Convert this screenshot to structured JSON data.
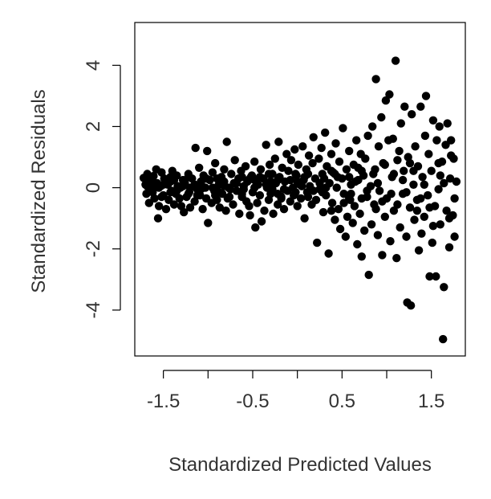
{
  "chart_data": {
    "type": "scatter",
    "title": "",
    "xlabel": "Standardized Predicted Values",
    "ylabel": "Standardized Residuals",
    "xlim": [
      -1.82,
      1.88
    ],
    "ylim": [
      -5.5,
      5.4
    ],
    "xticks": [
      -1.5,
      -1.0,
      -0.5,
      0.0,
      0.5,
      1.0,
      1.5
    ],
    "xtick_labels": [
      "-1.5",
      "",
      "-0.5",
      "",
      "0.5",
      "",
      "1.5"
    ],
    "yticks": [
      -4,
      -2,
      0,
      2,
      4
    ],
    "ytick_labels": [
      "-4",
      "-2",
      "0",
      "2",
      "4"
    ],
    "grid": false,
    "point_color": "#000000",
    "points": [
      [
        -1.72,
        0.32
      ],
      [
        -1.7,
        0.1
      ],
      [
        -1.69,
        -0.2
      ],
      [
        -1.68,
        0.45
      ],
      [
        -1.66,
        -0.5
      ],
      [
        -1.65,
        0.2
      ],
      [
        -1.63,
        -0.05
      ],
      [
        -1.61,
        0.38
      ],
      [
        -1.6,
        -0.35
      ],
      [
        -1.58,
        0.6
      ],
      [
        -1.57,
        0.15
      ],
      [
        -1.56,
        -1.0
      ],
      [
        -1.55,
        -0.6
      ],
      [
        -1.53,
        0.05
      ],
      [
        -1.52,
        0.5
      ],
      [
        -1.5,
        -0.25
      ],
      [
        -1.49,
        0.3
      ],
      [
        -1.47,
        -0.7
      ],
      [
        -1.45,
        0.1
      ],
      [
        -1.44,
        -0.4
      ],
      [
        -1.42,
        0.2
      ],
      [
        -1.41,
        -0.1
      ],
      [
        -1.4,
        0.55
      ],
      [
        -1.38,
        -0.55
      ],
      [
        -1.36,
        -0.2
      ],
      [
        -1.35,
        0.4
      ],
      [
        -1.34,
        0.05
      ],
      [
        -1.32,
        -0.35
      ],
      [
        -1.31,
        0.0
      ],
      [
        -1.3,
        -0.6
      ],
      [
        -1.28,
        0.25
      ],
      [
        -1.27,
        -0.8
      ],
      [
        -1.26,
        0.15
      ],
      [
        -1.24,
        -0.3
      ],
      [
        -1.22,
        0.45
      ],
      [
        -1.21,
        -0.15
      ],
      [
        -1.2,
        -0.65
      ],
      [
        -1.18,
        0.3
      ],
      [
        -1.16,
        0.05
      ],
      [
        -1.15,
        -0.45
      ],
      [
        -1.14,
        1.3
      ],
      [
        -1.12,
        -0.05
      ],
      [
        -1.1,
        0.65
      ],
      [
        -1.09,
        -0.25
      ],
      [
        -1.08,
        0.2
      ],
      [
        -1.06,
        -0.7
      ],
      [
        -1.05,
        0.4
      ],
      [
        -1.03,
        0.0
      ],
      [
        -1.02,
        -0.35
      ],
      [
        -1.01,
        1.2
      ],
      [
        -1.0,
        -1.15
      ],
      [
        -0.98,
        0.25
      ],
      [
        -0.96,
        -0.5
      ],
      [
        -0.95,
        0.5
      ],
      [
        -0.93,
        -0.1
      ],
      [
        -0.92,
        0.8
      ],
      [
        -0.9,
        -0.4
      ],
      [
        -0.88,
        0.1
      ],
      [
        -0.87,
        -0.65
      ],
      [
        -0.85,
        0.35
      ],
      [
        -0.84,
        -0.2
      ],
      [
        -0.82,
        0.6
      ],
      [
        -0.8,
        -0.75
      ],
      [
        -0.79,
        1.5
      ],
      [
        -0.77,
        0.0
      ],
      [
        -0.76,
        -0.3
      ],
      [
        -0.74,
        0.45
      ],
      [
        -0.72,
        -0.55
      ],
      [
        -0.71,
        0.15
      ],
      [
        -0.7,
        0.9
      ],
      [
        -0.68,
        -0.1
      ],
      [
        -0.66,
        0.3
      ],
      [
        -0.65,
        -0.85
      ],
      [
        -0.63,
        0.55
      ],
      [
        -0.62,
        -0.3
      ],
      [
        -0.6,
        0.05
      ],
      [
        -0.58,
        0.7
      ],
      [
        -0.57,
        -0.45
      ],
      [
        -0.56,
        0.2
      ],
      [
        -0.54,
        -0.6
      ],
      [
        -0.53,
        -0.9
      ],
      [
        -0.51,
        0.4
      ],
      [
        -0.5,
        -0.15
      ],
      [
        -0.48,
        0.85
      ],
      [
        -0.47,
        -1.3
      ],
      [
        -0.45,
        -0.5
      ],
      [
        -0.44,
        0.1
      ],
      [
        -0.42,
        -0.25
      ],
      [
        -0.41,
        0.6
      ],
      [
        -0.4,
        -1.1
      ],
      [
        -0.38,
        0.3
      ],
      [
        -0.37,
        -0.75
      ],
      [
        -0.35,
        1.4
      ],
      [
        -0.34,
        0.0
      ],
      [
        -0.32,
        -0.4
      ],
      [
        -0.31,
        0.75
      ],
      [
        -0.3,
        -0.2
      ],
      [
        -0.28,
        0.45
      ],
      [
        -0.27,
        -0.85
      ],
      [
        -0.25,
        0.95
      ],
      [
        -0.24,
        0.15
      ],
      [
        -0.22,
        -0.55
      ],
      [
        -0.21,
        1.5
      ],
      [
        -0.2,
        0.35
      ],
      [
        -0.18,
        -0.3
      ],
      [
        -0.17,
        0.65
      ],
      [
        -0.15,
        -0.7
      ],
      [
        -0.14,
        0.2
      ],
      [
        -0.12,
        1.1
      ],
      [
        -0.11,
        -0.1
      ],
      [
        -0.1,
        0.55
      ],
      [
        -0.08,
        -0.45
      ],
      [
        -0.07,
        0.9
      ],
      [
        -0.05,
        0.0
      ],
      [
        -0.04,
        -0.25
      ],
      [
        -0.03,
        1.25
      ],
      [
        -0.01,
        0.4
      ],
      [
        0.0,
        -0.6
      ],
      [
        0.01,
        0.75
      ],
      [
        0.03,
        0.1
      ],
      [
        0.04,
        -0.35
      ],
      [
        0.06,
        1.35
      ],
      [
        0.07,
        0.25
      ],
      [
        0.08,
        -1.0
      ],
      [
        0.1,
        0.6
      ],
      [
        0.11,
        -0.15
      ],
      [
        0.13,
        1.05
      ],
      [
        0.14,
        0.05
      ],
      [
        0.16,
        -0.55
      ],
      [
        0.17,
        0.8
      ],
      [
        0.18,
        1.65
      ],
      [
        0.2,
        0.3
      ],
      [
        0.21,
        -0.4
      ],
      [
        0.22,
        -1.8
      ],
      [
        0.24,
        0.95
      ],
      [
        0.25,
        -0.05
      ],
      [
        0.27,
        1.3
      ],
      [
        0.28,
        0.45
      ],
      [
        0.29,
        -0.8
      ],
      [
        0.31,
        1.8
      ],
      [
        0.32,
        -0.25
      ],
      [
        0.33,
        0.7
      ],
      [
        0.35,
        -2.15
      ],
      [
        0.36,
        0.15
      ],
      [
        0.38,
        1.1
      ],
      [
        0.39,
        -0.5
      ],
      [
        0.4,
        0.5
      ],
      [
        0.42,
        -1.05
      ],
      [
        0.43,
        1.45
      ],
      [
        0.44,
        0.0
      ],
      [
        0.46,
        -0.7
      ],
      [
        0.47,
        0.85
      ],
      [
        0.48,
        -1.35
      ],
      [
        0.5,
        0.3
      ],
      [
        0.51,
        1.95
      ],
      [
        0.52,
        -0.2
      ],
      [
        0.54,
        -1.6
      ],
      [
        0.55,
        0.6
      ],
      [
        0.56,
        -0.95
      ],
      [
        0.58,
        1.2
      ],
      [
        0.59,
        -0.4
      ],
      [
        0.6,
        0.1
      ],
      [
        0.62,
        -1.15
      ],
      [
        0.63,
        0.75
      ],
      [
        0.64,
        -0.6
      ],
      [
        0.66,
        1.55
      ],
      [
        0.67,
        -1.85
      ],
      [
        0.68,
        0.25
      ],
      [
        0.7,
        -0.85
      ],
      [
        0.71,
        1.1
      ],
      [
        0.72,
        -2.25
      ],
      [
        0.74,
        0.4
      ],
      [
        0.75,
        -1.4
      ],
      [
        0.76,
        0.95
      ],
      [
        0.78,
        -0.3
      ],
      [
        0.79,
        1.7
      ],
      [
        0.8,
        -2.85
      ],
      [
        0.82,
        0.05
      ],
      [
        0.83,
        -1.2
      ],
      [
        0.84,
        2.0
      ],
      [
        0.86,
        -0.55
      ],
      [
        0.87,
        0.6
      ],
      [
        0.88,
        3.55
      ],
      [
        0.9,
        -1.55
      ],
      [
        0.91,
        1.35
      ],
      [
        0.92,
        -0.1
      ],
      [
        0.94,
        2.3
      ],
      [
        0.95,
        -2.2
      ],
      [
        0.96,
        0.8
      ],
      [
        0.98,
        -0.95
      ],
      [
        0.99,
        2.85
      ],
      [
        1.0,
        -0.35
      ],
      [
        1.02,
        1.55
      ],
      [
        1.03,
        3.05
      ],
      [
        1.04,
        -1.75
      ],
      [
        1.06,
        0.35
      ],
      [
        1.07,
        1.6
      ],
      [
        1.08,
        -0.75
      ],
      [
        1.1,
        4.15
      ],
      [
        1.11,
        -2.3
      ],
      [
        1.12,
        0.9
      ],
      [
        1.14,
        1.2
      ],
      [
        1.15,
        -1.3
      ],
      [
        1.16,
        2.1
      ],
      [
        1.18,
        -0.2
      ],
      [
        1.19,
        0.55
      ],
      [
        1.2,
        2.65
      ],
      [
        1.22,
        -1.6
      ],
      [
        1.23,
        -3.75
      ],
      [
        1.24,
        1.0
      ],
      [
        1.26,
        -0.65
      ],
      [
        1.27,
        -3.85
      ],
      [
        1.28,
        2.4
      ],
      [
        1.3,
        0.1
      ],
      [
        1.31,
        -1.05
      ],
      [
        1.32,
        1.35
      ],
      [
        1.34,
        -0.4
      ],
      [
        1.35,
        0.7
      ],
      [
        1.36,
        -2.05
      ],
      [
        1.38,
        2.65
      ],
      [
        1.39,
        -1.5
      ],
      [
        1.4,
        0.35
      ],
      [
        1.42,
        -0.95
      ],
      [
        1.43,
        1.7
      ],
      [
        1.44,
        3.0
      ],
      [
        1.46,
        -0.25
      ],
      [
        1.47,
        1.1
      ],
      [
        1.48,
        -2.9
      ],
      [
        1.5,
        0.55
      ],
      [
        1.51,
        -1.8
      ],
      [
        1.52,
        2.2
      ],
      [
        1.54,
        -0.6
      ],
      [
        1.55,
        -2.9
      ],
      [
        1.56,
        1.55
      ],
      [
        1.58,
        -0.05
      ],
      [
        1.59,
        2.0
      ],
      [
        1.6,
        -1.2
      ],
      [
        1.62,
        0.85
      ],
      [
        1.63,
        -4.95
      ],
      [
        1.64,
        -3.25
      ],
      [
        1.66,
        1.4
      ],
      [
        1.67,
        -0.75
      ],
      [
        1.68,
        2.1
      ],
      [
        1.7,
        -1.95
      ],
      [
        1.71,
        0.3
      ],
      [
        1.72,
        1.55
      ],
      [
        1.74,
        -0.9
      ],
      [
        1.75,
        0.95
      ],
      [
        1.76,
        -1.6
      ],
      [
        1.78,
        0.2
      ],
      [
        1.6,
        0.4
      ],
      [
        1.42,
        0.1
      ],
      [
        1.22,
        -0.15
      ],
      [
        1.05,
        -0.2
      ],
      [
        0.85,
        0.45
      ],
      [
        0.65,
        0.2
      ],
      [
        0.45,
        0.35
      ],
      [
        0.25,
        0.15
      ],
      [
        0.05,
        0.05
      ],
      [
        -0.15,
        -0.05
      ],
      [
        -0.35,
        0.1
      ],
      [
        -0.55,
        0.25
      ],
      [
        -0.75,
        -0.05
      ],
      [
        -0.95,
        0.0
      ],
      [
        -1.15,
        0.1
      ],
      [
        -1.35,
        -0.1
      ],
      [
        -1.55,
        0.0
      ],
      [
        -1.68,
        0.05
      ],
      [
        1.76,
        -0.35
      ],
      [
        1.48,
        -0.65
      ],
      [
        1.18,
        0.25
      ],
      [
        0.95,
        -0.45
      ],
      [
        0.72,
        0.55
      ],
      [
        0.52,
        -0.5
      ],
      [
        0.32,
        0.0
      ],
      [
        0.12,
        -0.3
      ],
      [
        -0.08,
        0.25
      ],
      [
        -0.28,
        -0.05
      ],
      [
        -0.48,
        0.0
      ],
      [
        -0.68,
        0.15
      ],
      [
        -0.88,
        -0.15
      ],
      [
        -1.08,
        -0.05
      ],
      [
        -1.28,
        0.05
      ],
      [
        -1.48,
        0.15
      ],
      [
        -1.62,
        -0.15
      ],
      [
        1.58,
        0.8
      ],
      [
        1.38,
        -0.35
      ],
      [
        1.08,
        0.45
      ],
      [
        0.78,
        -0.1
      ],
      [
        0.58,
        0.35
      ],
      [
        0.38,
        0.55
      ],
      [
        0.18,
        -0.1
      ],
      [
        -0.02,
        0.45
      ],
      [
        -0.22,
        0.25
      ],
      [
        -0.42,
        0.35
      ],
      [
        -0.62,
        -0.2
      ],
      [
        -0.82,
        0.2
      ],
      [
        -1.02,
        0.3
      ],
      [
        -1.22,
        -0.2
      ],
      [
        -1.42,
        -0.15
      ],
      [
        1.7,
        -1.0
      ],
      [
        1.3,
        0.55
      ],
      [
        0.9,
        0.15
      ],
      [
        0.6,
        -0.2
      ],
      [
        0.3,
        0.3
      ],
      [
        0.0,
        0.2
      ],
      [
        -0.3,
        0.2
      ],
      [
        -0.6,
        -0.05
      ],
      [
        -0.9,
        0.3
      ],
      [
        -1.2,
        0.0
      ],
      [
        -1.5,
        0.1
      ],
      [
        -1.66,
        0.25
      ],
      [
        1.52,
        -1.25
      ],
      [
        1.12,
        -0.55
      ],
      [
        0.72,
        -0.35
      ],
      [
        0.42,
        0.45
      ],
      [
        0.12,
        0.45
      ],
      [
        -0.18,
        -0.35
      ],
      [
        -0.48,
        0.25
      ],
      [
        -0.78,
        -0.35
      ],
      [
        -1.08,
        0.15
      ],
      [
        -1.38,
        0.25
      ],
      [
        1.64,
        0.15
      ],
      [
        1.26,
        0.8
      ],
      [
        0.88,
        -0.7
      ],
      [
        0.58,
        -0.35
      ],
      [
        0.28,
        -0.15
      ],
      [
        -0.02,
        -0.15
      ],
      [
        -0.32,
        0.45
      ],
      [
        -0.62,
        0.35
      ],
      [
        -0.92,
        -0.25
      ],
      [
        -1.22,
        0.35
      ],
      [
        -1.52,
        -0.3
      ],
      [
        1.72,
        1.05
      ],
      [
        1.34,
        -0.75
      ],
      [
        0.98,
        0.75
      ],
      [
        0.68,
        0.65
      ],
      [
        0.38,
        -0.75
      ],
      [
        0.08,
        0.35
      ],
      [
        -0.22,
        -0.2
      ],
      [
        -0.52,
        0.35
      ],
      [
        -0.82,
        0.05
      ],
      [
        -1.12,
        -0.25
      ],
      [
        -1.42,
        0.35
      ],
      [
        -1.6,
        0.15
      ]
    ]
  }
}
